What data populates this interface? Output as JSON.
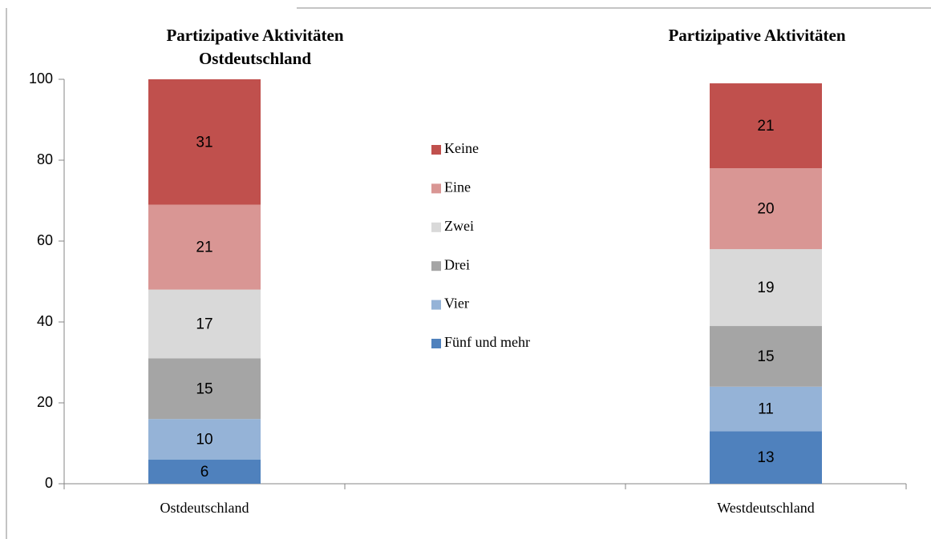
{
  "chart_data": {
    "type": "stacked_bar",
    "annotations": [
      "Partizipative Aktivitäten",
      "Ostdeutschland",
      "Partizipative Aktivitäten"
    ],
    "categories": [
      "Ostdeutschland",
      null,
      "Westdeutschland"
    ],
    "series": [
      {
        "name": "Fünf und mehr",
        "color": "#4f81bd",
        "values": [
          6,
          null,
          13
        ]
      },
      {
        "name": "Vier",
        "color": "#95b3d7",
        "values": [
          10,
          null,
          11
        ]
      },
      {
        "name": "Drei",
        "color": "#a5a5a5",
        "values": [
          15,
          null,
          15
        ]
      },
      {
        "name": "Zwei",
        "color": "#d9d9d9",
        "values": [
          17,
          null,
          19
        ]
      },
      {
        "name": "Eine",
        "color": "#d99694",
        "values": [
          21,
          null,
          20
        ]
      },
      {
        "name": "Keine",
        "color": "#c0504d",
        "values": [
          31,
          null,
          21
        ]
      }
    ],
    "ylim": [
      0,
      100
    ],
    "yticks": [
      0,
      20,
      40,
      60,
      80,
      100
    ],
    "grid": false,
    "legend": "center"
  }
}
